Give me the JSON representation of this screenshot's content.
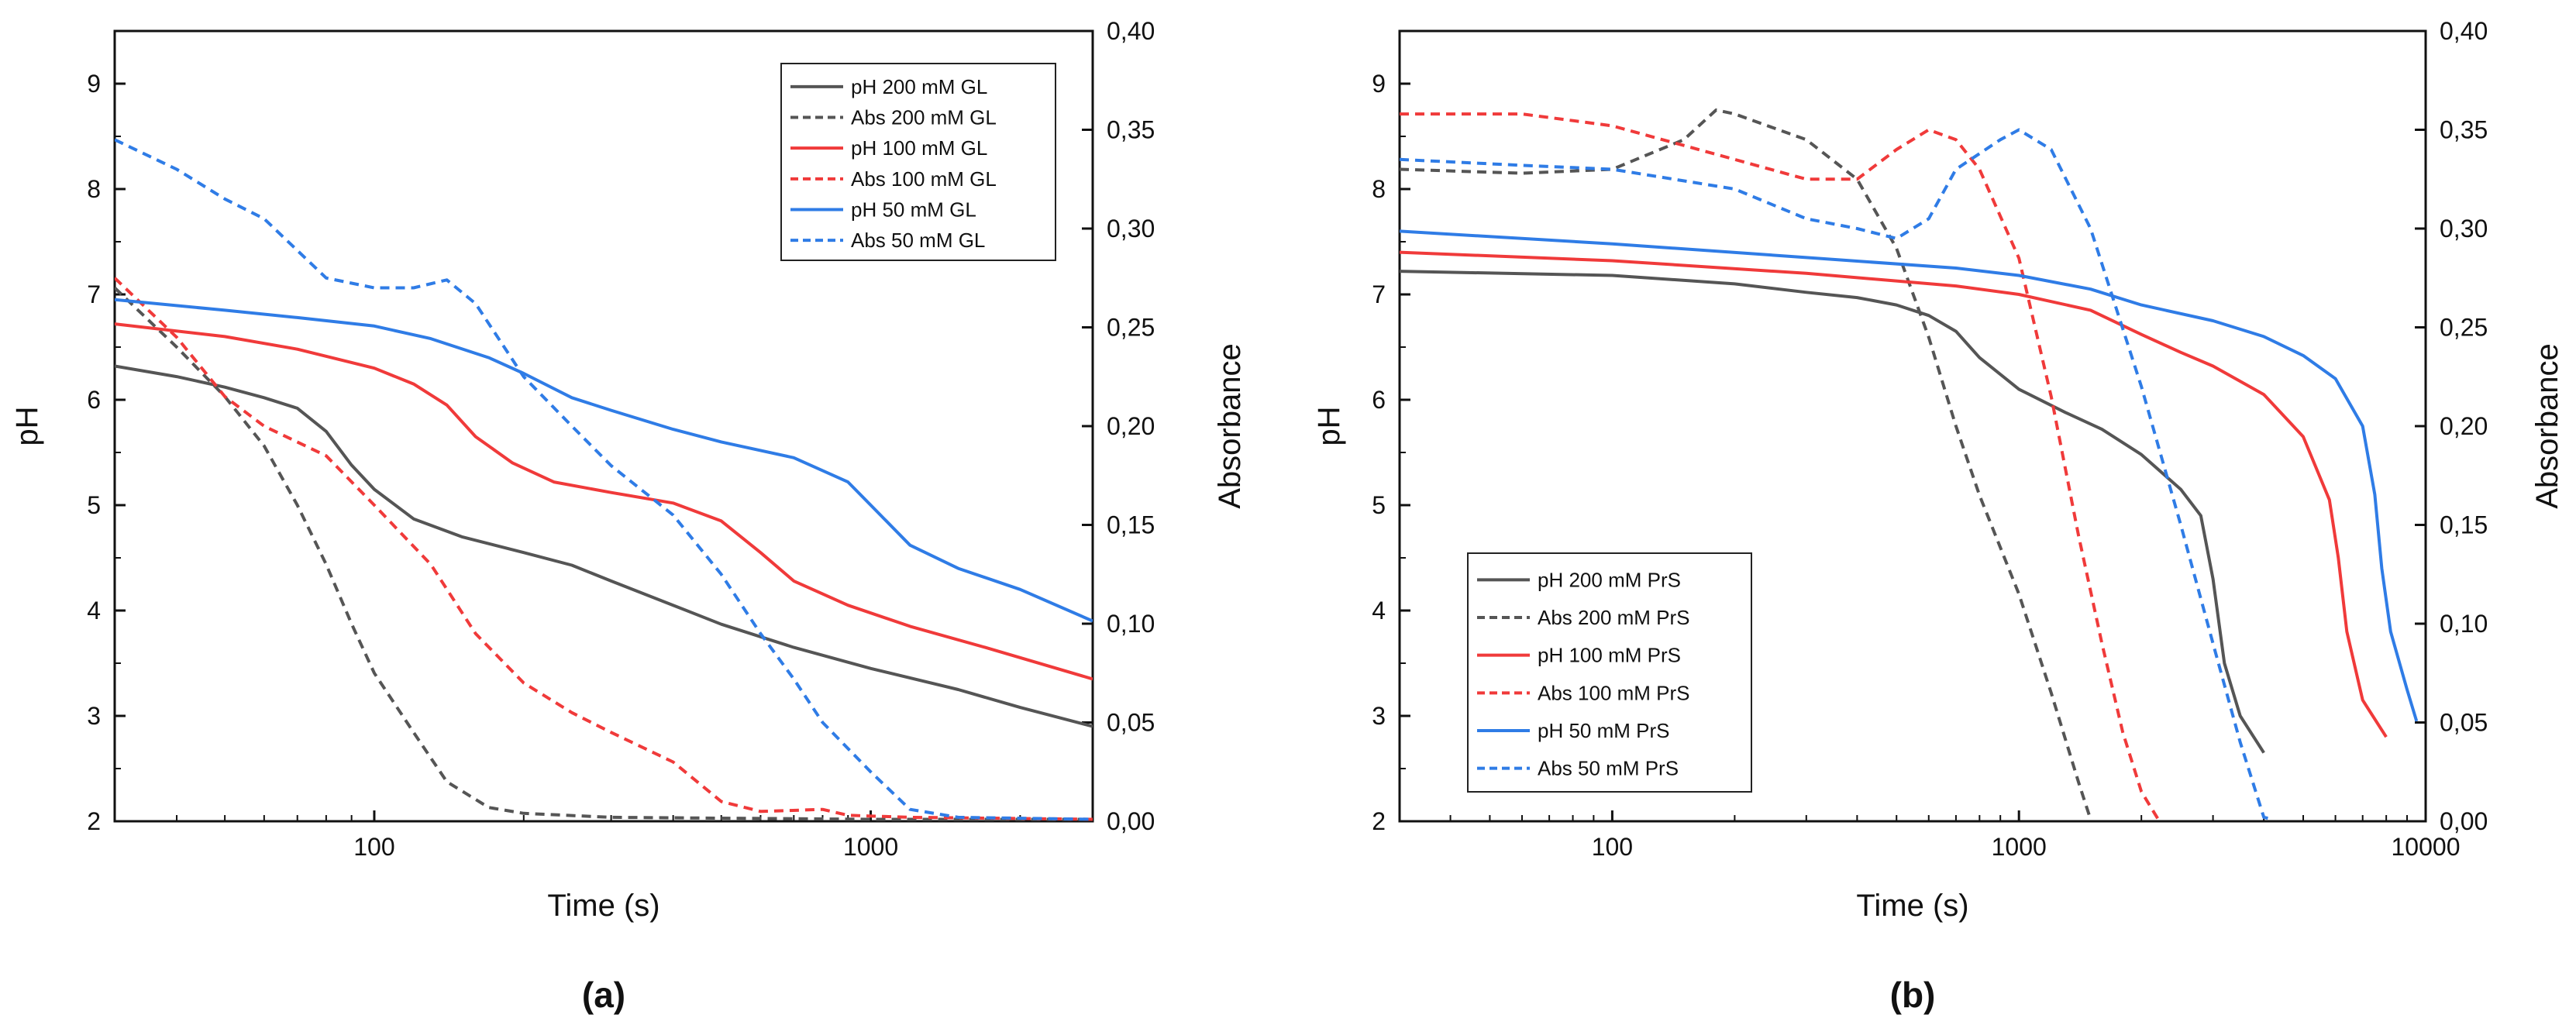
{
  "chart_data": [
    {
      "type": "line",
      "panel_label": "(a)",
      "xlabel": "Time (s)",
      "ylabel": "pH",
      "y2label": "Absorbance",
      "xscale": "log",
      "xlim": [
        30,
        2800
      ],
      "ylim": [
        2,
        9.5
      ],
      "y2lim": [
        0,
        0.4
      ],
      "xticks": [
        100,
        1000
      ],
      "xtick_labels": [
        "100",
        "1000"
      ],
      "yticks": [
        2,
        3,
        4,
        5,
        6,
        7,
        8,
        9
      ],
      "ytick_labels": [
        "2",
        "3",
        "4",
        "5",
        "6",
        "7",
        "8",
        "9"
      ],
      "y2ticks": [
        0,
        0.05,
        0.1,
        0.15,
        0.2,
        0.25,
        0.3,
        0.35,
        0.4
      ],
      "y2tick_labels": [
        "0,00",
        "0,05",
        "0,10",
        "0,15",
        "0,20",
        "0,25",
        "0,30",
        "0,35",
        "0,40"
      ],
      "legend_position": "top-right",
      "series": [
        {
          "name": "pH 200 mM GL",
          "axis": "left",
          "color": "#555555",
          "dash": false,
          "points": [
            [
              30,
              6.32
            ],
            [
              40,
              6.22
            ],
            [
              50,
              6.12
            ],
            [
              60,
              6.02
            ],
            [
              70,
              5.92
            ],
            [
              80,
              5.7
            ],
            [
              90,
              5.38
            ],
            [
              100,
              5.15
            ],
            [
              120,
              4.87
            ],
            [
              150,
              4.7
            ],
            [
              200,
              4.55
            ],
            [
              250,
              4.43
            ],
            [
              300,
              4.28
            ],
            [
              400,
              4.05
            ],
            [
              500,
              3.87
            ],
            [
              700,
              3.65
            ],
            [
              1000,
              3.45
            ],
            [
              1500,
              3.25
            ],
            [
              2000,
              3.08
            ],
            [
              2800,
              2.9
            ]
          ]
        },
        {
          "name": "Abs 200 mM GL",
          "axis": "right",
          "color": "#555555",
          "dash": true,
          "points": [
            [
              30,
              0.27
            ],
            [
              40,
              0.24
            ],
            [
              50,
              0.215
            ],
            [
              60,
              0.19
            ],
            [
              70,
              0.16
            ],
            [
              80,
              0.13
            ],
            [
              90,
              0.1
            ],
            [
              100,
              0.075
            ],
            [
              120,
              0.045
            ],
            [
              140,
              0.02
            ],
            [
              170,
              0.007
            ],
            [
              200,
              0.004
            ],
            [
              300,
              0.002
            ],
            [
              1000,
              0.001
            ],
            [
              2800,
              0.001
            ]
          ]
        },
        {
          "name": "pH 100 mM GL",
          "axis": "left",
          "color": "#f03a3a",
          "dash": false,
          "points": [
            [
              30,
              6.72
            ],
            [
              50,
              6.6
            ],
            [
              70,
              6.48
            ],
            [
              100,
              6.3
            ],
            [
              120,
              6.15
            ],
            [
              140,
              5.95
            ],
            [
              160,
              5.65
            ],
            [
              190,
              5.4
            ],
            [
              230,
              5.22
            ],
            [
              300,
              5.12
            ],
            [
              400,
              5.02
            ],
            [
              500,
              4.85
            ],
            [
              600,
              4.55
            ],
            [
              700,
              4.28
            ],
            [
              900,
              4.05
            ],
            [
              1200,
              3.85
            ],
            [
              1700,
              3.65
            ],
            [
              2800,
              3.35
            ]
          ]
        },
        {
          "name": "Abs 100 mM GL",
          "axis": "right",
          "color": "#f03a3a",
          "dash": true,
          "points": [
            [
              30,
              0.275
            ],
            [
              40,
              0.245
            ],
            [
              50,
              0.215
            ],
            [
              60,
              0.2
            ],
            [
              80,
              0.185
            ],
            [
              100,
              0.16
            ],
            [
              130,
              0.13
            ],
            [
              160,
              0.095
            ],
            [
              200,
              0.07
            ],
            [
              250,
              0.055
            ],
            [
              300,
              0.045
            ],
            [
              400,
              0.03
            ],
            [
              500,
              0.01
            ],
            [
              600,
              0.005
            ],
            [
              800,
              0.006
            ],
            [
              900,
              0.003
            ],
            [
              1200,
              0.002
            ],
            [
              2800,
              0.001
            ]
          ]
        },
        {
          "name": "pH 50 mM GL",
          "axis": "left",
          "color": "#2f7ce6",
          "dash": false,
          "points": [
            [
              30,
              6.95
            ],
            [
              50,
              6.85
            ],
            [
              70,
              6.78
            ],
            [
              100,
              6.7
            ],
            [
              130,
              6.58
            ],
            [
              170,
              6.4
            ],
            [
              200,
              6.25
            ],
            [
              250,
              6.02
            ],
            [
              300,
              5.9
            ],
            [
              400,
              5.72
            ],
            [
              500,
              5.6
            ],
            [
              700,
              5.45
            ],
            [
              900,
              5.22
            ],
            [
              1000,
              5.0
            ],
            [
              1200,
              4.62
            ],
            [
              1500,
              4.4
            ],
            [
              2000,
              4.2
            ],
            [
              2800,
              3.9
            ]
          ]
        },
        {
          "name": "Abs 50 mM GL",
          "axis": "right",
          "color": "#2f7ce6",
          "dash": true,
          "points": [
            [
              30,
              0.345
            ],
            [
              40,
              0.33
            ],
            [
              50,
              0.315
            ],
            [
              60,
              0.305
            ],
            [
              80,
              0.275
            ],
            [
              100,
              0.27
            ],
            [
              120,
              0.27
            ],
            [
              140,
              0.274
            ],
            [
              160,
              0.262
            ],
            [
              200,
              0.225
            ],
            [
              250,
              0.2
            ],
            [
              300,
              0.18
            ],
            [
              400,
              0.155
            ],
            [
              500,
              0.125
            ],
            [
              600,
              0.095
            ],
            [
              700,
              0.072
            ],
            [
              800,
              0.05
            ],
            [
              1000,
              0.025
            ],
            [
              1200,
              0.006
            ],
            [
              1500,
              0.002
            ],
            [
              2800,
              0.001
            ]
          ]
        }
      ]
    },
    {
      "type": "line",
      "panel_label": "(b)",
      "xlabel": "Time (s)",
      "ylabel": "pH",
      "y2label": "Absorbance",
      "xscale": "log",
      "xlim": [
        30,
        10000
      ],
      "ylim": [
        2,
        9.5
      ],
      "y2lim": [
        0,
        0.4
      ],
      "xticks": [
        100,
        1000,
        10000
      ],
      "xtick_labels": [
        "100",
        "1000",
        "10000"
      ],
      "yticks": [
        2,
        3,
        4,
        5,
        6,
        7,
        8,
        9
      ],
      "ytick_labels": [
        "2",
        "3",
        "4",
        "5",
        "6",
        "7",
        "8",
        "9"
      ],
      "y2ticks": [
        0,
        0.05,
        0.1,
        0.15,
        0.2,
        0.25,
        0.3,
        0.35,
        0.4
      ],
      "y2tick_labels": [
        "0,00",
        "0,05",
        "0,10",
        "0,15",
        "0,20",
        "0,25",
        "0,30",
        "0,35",
        "0,40"
      ],
      "legend_position": "bottom-left",
      "series": [
        {
          "name": "pH 200 mM PrS",
          "axis": "left",
          "color": "#555555",
          "dash": false,
          "points": [
            [
              30,
              7.22
            ],
            [
              100,
              7.18
            ],
            [
              200,
              7.1
            ],
            [
              300,
              7.02
            ],
            [
              400,
              6.97
            ],
            [
              500,
              6.9
            ],
            [
              600,
              6.8
            ],
            [
              700,
              6.65
            ],
            [
              800,
              6.4
            ],
            [
              1000,
              6.1
            ],
            [
              1300,
              5.88
            ],
            [
              1600,
              5.72
            ],
            [
              2000,
              5.48
            ],
            [
              2500,
              5.15
            ],
            [
              2800,
              4.9
            ],
            [
              3000,
              4.3
            ],
            [
              3200,
              3.5
            ],
            [
              3500,
              3.0
            ],
            [
              4000,
              2.65
            ]
          ]
        },
        {
          "name": "Abs 200 mM PrS",
          "axis": "right",
          "color": "#555555",
          "dash": true,
          "points": [
            [
              30,
              0.33
            ],
            [
              60,
              0.328
            ],
            [
              100,
              0.33
            ],
            [
              150,
              0.345
            ],
            [
              180,
              0.36
            ],
            [
              200,
              0.358
            ],
            [
              300,
              0.345
            ],
            [
              400,
              0.325
            ],
            [
              500,
              0.29
            ],
            [
              600,
              0.245
            ],
            [
              700,
              0.2
            ],
            [
              800,
              0.165
            ],
            [
              1000,
              0.115
            ],
            [
              1200,
              0.065
            ],
            [
              1400,
              0.02
            ],
            [
              1500,
              0.001
            ]
          ]
        },
        {
          "name": "pH 100 mM PrS",
          "axis": "left",
          "color": "#f03a3a",
          "dash": false,
          "points": [
            [
              30,
              7.4
            ],
            [
              100,
              7.32
            ],
            [
              300,
              7.2
            ],
            [
              700,
              7.08
            ],
            [
              1000,
              7.0
            ],
            [
              1500,
              6.85
            ],
            [
              2000,
              6.62
            ],
            [
              2500,
              6.45
            ],
            [
              3000,
              6.32
            ],
            [
              4000,
              6.05
            ],
            [
              5000,
              5.65
            ],
            [
              5800,
              5.05
            ],
            [
              6100,
              4.5
            ],
            [
              6400,
              3.8
            ],
            [
              7000,
              3.15
            ],
            [
              8000,
              2.8
            ]
          ]
        },
        {
          "name": "Abs 100 mM PrS",
          "axis": "right",
          "color": "#f03a3a",
          "dash": true,
          "points": [
            [
              30,
              0.358
            ],
            [
              60,
              0.358
            ],
            [
              100,
              0.352
            ],
            [
              200,
              0.335
            ],
            [
              300,
              0.325
            ],
            [
              400,
              0.325
            ],
            [
              500,
              0.34
            ],
            [
              600,
              0.35
            ],
            [
              700,
              0.345
            ],
            [
              800,
              0.33
            ],
            [
              1000,
              0.285
            ],
            [
              1200,
              0.215
            ],
            [
              1400,
              0.145
            ],
            [
              1600,
              0.09
            ],
            [
              1800,
              0.045
            ],
            [
              2000,
              0.015
            ],
            [
              2200,
              0.001
            ]
          ]
        },
        {
          "name": "pH 50 mM PrS",
          "axis": "left",
          "color": "#2f7ce6",
          "dash": false,
          "points": [
            [
              30,
              7.6
            ],
            [
              100,
              7.48
            ],
            [
              300,
              7.35
            ],
            [
              700,
              7.25
            ],
            [
              1000,
              7.18
            ],
            [
              1500,
              7.05
            ],
            [
              2000,
              6.9
            ],
            [
              3000,
              6.75
            ],
            [
              4000,
              6.6
            ],
            [
              5000,
              6.42
            ],
            [
              6000,
              6.2
            ],
            [
              7000,
              5.75
            ],
            [
              7500,
              5.1
            ],
            [
              7800,
              4.4
            ],
            [
              8200,
              3.8
            ],
            [
              9000,
              3.25
            ],
            [
              9500,
              2.95
            ]
          ]
        },
        {
          "name": "Abs 50 mM PrS",
          "axis": "right",
          "color": "#2f7ce6",
          "dash": true,
          "points": [
            [
              30,
              0.335
            ],
            [
              60,
              0.332
            ],
            [
              100,
              0.33
            ],
            [
              200,
              0.32
            ],
            [
              300,
              0.305
            ],
            [
              400,
              0.3
            ],
            [
              500,
              0.295
            ],
            [
              600,
              0.305
            ],
            [
              700,
              0.33
            ],
            [
              900,
              0.345
            ],
            [
              1000,
              0.35
            ],
            [
              1200,
              0.34
            ],
            [
              1500,
              0.3
            ],
            [
              2000,
              0.22
            ],
            [
              2500,
              0.15
            ],
            [
              3000,
              0.09
            ],
            [
              3500,
              0.04
            ],
            [
              4000,
              0.002
            ],
            [
              4200,
              0.001
            ]
          ]
        }
      ]
    }
  ]
}
